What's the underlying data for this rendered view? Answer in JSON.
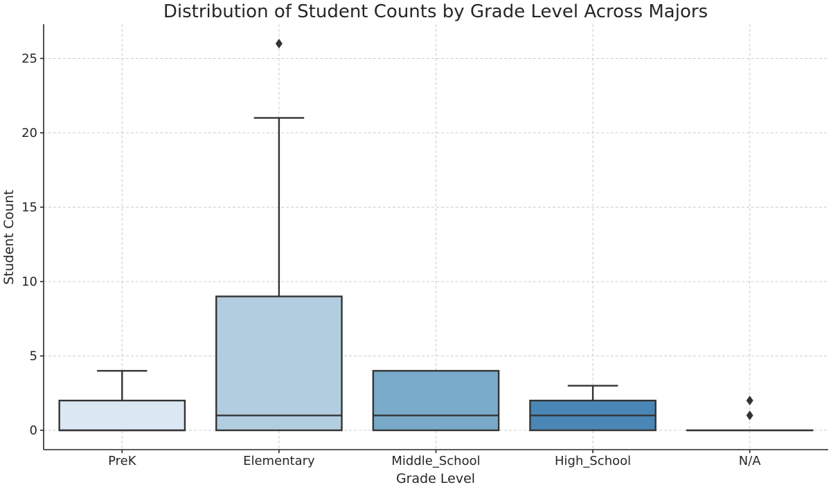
{
  "chart_data": {
    "type": "box",
    "title": "Distribution of Student Counts by Grade Level Across Majors",
    "xlabel": "Grade Level",
    "ylabel": "Student Count",
    "ylim": [
      -1.3,
      27.3
    ],
    "yticks": [
      0,
      5,
      10,
      15,
      20,
      25
    ],
    "grid": true,
    "categories": [
      "PreK",
      "Elementary",
      "Middle_School",
      "High_School",
      "N/A"
    ],
    "boxes": [
      {
        "category": "PreK",
        "whisker_low": 0,
        "q1": 0,
        "median": 0,
        "q3": 2,
        "whisker_high": 4,
        "outliers": [],
        "color": "#dbe7f3"
      },
      {
        "category": "Elementary",
        "whisker_low": 0,
        "q1": 0,
        "median": 1,
        "q3": 9,
        "whisker_high": 21,
        "outliers": [
          26
        ],
        "color": "#b3cde0"
      },
      {
        "category": "Middle_School",
        "whisker_low": 0,
        "q1": 0,
        "median": 1,
        "q3": 4,
        "whisker_high": 4,
        "outliers": [],
        "color": "#7aaac9"
      },
      {
        "category": "High_School",
        "whisker_low": 0,
        "q1": 0,
        "median": 1,
        "q3": 2,
        "whisker_high": 3,
        "outliers": [],
        "color": "#4a87b6"
      },
      {
        "category": "N/A",
        "whisker_low": 0,
        "q1": 0,
        "median": 0,
        "q3": 0,
        "whisker_high": 0,
        "outliers": [
          1,
          2
        ],
        "color": "#2a6aa3"
      }
    ]
  }
}
